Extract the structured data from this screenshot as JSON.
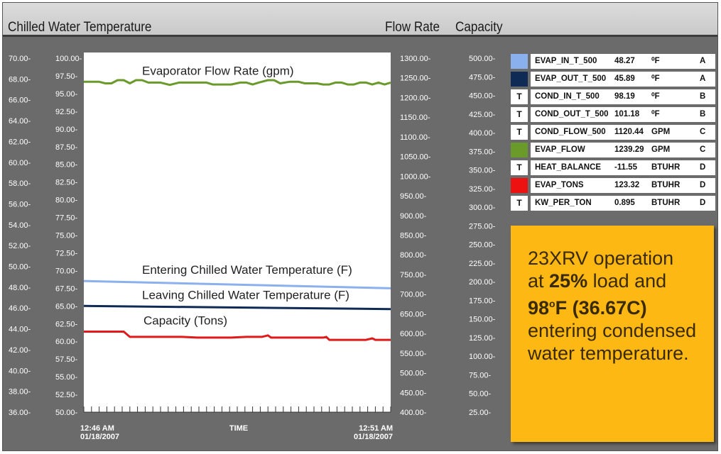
{
  "header": {
    "title_left": "Chilled Water Temperature",
    "title_flow": "Flow Rate",
    "title_capacity": "Capacity"
  },
  "chart_data": {
    "type": "line",
    "title": "",
    "xlabel": "TIME",
    "x_start_label": [
      "12:46 AM",
      "01/18/2007"
    ],
    "x_end_label": [
      "12:51 AM",
      "01/18/2007"
    ],
    "x_range_minutes": [
      0,
      5
    ],
    "axes": [
      {
        "id": "chilled_temp",
        "title": "Chilled Water Temperature",
        "range": [
          36,
          70
        ],
        "ticks": [
          "70.00-",
          "68.00-",
          "66.00-",
          "64.00-",
          "62.00-",
          "60.00-",
          "58.00-",
          "56.00-",
          "54.00-",
          "52.00-",
          "50.00-",
          "48.00-",
          "46.00-",
          "44.00-",
          "42.00-",
          "40.00-",
          "38.00-",
          "36.00-"
        ]
      },
      {
        "id": "cond_temp",
        "title": "",
        "range": [
          50,
          100
        ],
        "ticks": [
          "100.00-",
          "97.50-",
          "95.00-",
          "92.50-",
          "90.00-",
          "87.50-",
          "85.00-",
          "82.50-",
          "80.00-",
          "77.50-",
          "75.00-",
          "72.50-",
          "70.00-",
          "67.50-",
          "65.00-",
          "62.50-",
          "60.00-",
          "57.50-",
          "55.00-",
          "52.50-",
          "50.00-"
        ]
      },
      {
        "id": "flow_rate",
        "title": "Flow Rate",
        "range": [
          400,
          1300
        ],
        "ticks": [
          "1300.00-",
          "1250.00-",
          "1200.00-",
          "1150.00-",
          "1100.00-",
          "1050.00-",
          "1000.00-",
          "950.00-",
          "900.00-",
          "850.00-",
          "800.00-",
          "750.00-",
          "700.00-",
          "650.00-",
          "600.00-",
          "550.00-",
          "500.00-",
          "450.00-",
          "400.00-"
        ]
      },
      {
        "id": "capacity",
        "title": "Capacity",
        "range": [
          25,
          500
        ],
        "ticks": [
          "500.00-",
          "475.00-",
          "450.00-",
          "425.00-",
          "400.00-",
          "375.00-",
          "350.00-",
          "325.00-",
          "300.00-",
          "275.00-",
          "250.00-",
          "225.00-",
          "200.00-",
          "175.00-",
          "150.00-",
          "125.00-",
          "100.00-",
          "75.00-",
          "50.00-",
          "25.00-"
        ]
      }
    ],
    "series": [
      {
        "name": "Evaporator Flow Rate (gpm)",
        "axis": "flow_rate",
        "color": "#6a9a2a",
        "x": [
          0,
          0.25,
          0.35,
          0.45,
          0.55,
          0.65,
          0.75,
          0.85,
          0.95,
          1.05,
          1.15,
          1.25,
          1.4,
          1.55,
          1.7,
          1.85,
          2.0,
          2.1,
          2.25,
          2.4,
          2.55,
          2.65,
          2.75,
          2.85,
          3.0,
          3.1,
          3.2,
          3.35,
          3.5,
          3.6,
          3.7,
          3.8,
          3.9,
          4.0,
          4.1,
          4.2,
          4.3,
          4.4,
          4.5,
          4.6,
          4.7,
          4.8,
          4.9,
          5.0
        ],
        "y": [
          1240,
          1240,
          1236,
          1236,
          1244,
          1244,
          1236,
          1244,
          1244,
          1238,
          1238,
          1238,
          1232,
          1238,
          1238,
          1238,
          1238,
          1233,
          1233,
          1233,
          1238,
          1238,
          1233,
          1238,
          1244,
          1244,
          1236,
          1240,
          1240,
          1236,
          1236,
          1236,
          1233,
          1233,
          1238,
          1238,
          1233,
          1233,
          1238,
          1238,
          1233,
          1238,
          1233,
          1238
        ]
      },
      {
        "name": "Entering Chilled Water Temperature (F)",
        "axis": "chilled_temp",
        "color": "#8ab0ee",
        "x": [
          0,
          5
        ],
        "y": [
          48.6,
          47.9
        ]
      },
      {
        "name": "Leaving Chilled Water Temperature (F)",
        "axis": "chilled_temp",
        "color": "#0e2a55",
        "x": [
          0,
          5
        ],
        "y": [
          46.2,
          45.9
        ]
      },
      {
        "name": "Capacity (Tons)",
        "axis": "capacity",
        "color": "#e01a1a",
        "x": [
          0,
          0.65,
          0.75,
          1.6,
          1.85,
          2.4,
          2.65,
          2.9,
          3.0,
          3.05,
          3.1,
          3.4,
          3.6,
          3.8,
          3.9,
          3.95,
          4.0,
          4.6,
          4.7,
          4.75,
          4.85,
          5.0
        ],
        "y": [
          133,
          133,
          126,
          126,
          125,
          125,
          126,
          126,
          128,
          125,
          125,
          125,
          125,
          125,
          125,
          126,
          122,
          122,
          124,
          122,
          122,
          122
        ]
      }
    ],
    "annotations": [
      {
        "text": "Evaporator Flow Rate (gpm)"
      },
      {
        "text": "Entering Chilled Water Temperature (F)"
      },
      {
        "text": "Leaving Chilled Water Temperature (F)"
      },
      {
        "text": "Capacity (Tons)"
      }
    ],
    "grid": false
  },
  "legend": [
    {
      "swatch": "",
      "color": "#8ab0ee",
      "name": "EVAP_IN_T_500",
      "value": "48.27",
      "unit": "⁰F",
      "axis": "A"
    },
    {
      "swatch": "",
      "color": "#0e2a55",
      "name": "EVAP_OUT_T_500",
      "value": "45.89",
      "unit": "⁰F",
      "axis": "A"
    },
    {
      "swatch": "T",
      "color": "#ffffff",
      "name": "COND_IN_T_500",
      "value": "98.19",
      "unit": "⁰F",
      "axis": "B"
    },
    {
      "swatch": "T",
      "color": "#ffffff",
      "name": "COND_OUT_T_500",
      "value": "101.18",
      "unit": "⁰F",
      "axis": "B"
    },
    {
      "swatch": "T",
      "color": "#ffffff",
      "name": "COND_FLOW_500",
      "value": "1120.44",
      "unit": "GPM",
      "axis": "C"
    },
    {
      "swatch": "",
      "color": "#6a9a2a",
      "name": "EVAP_FLOW",
      "value": "1239.29",
      "unit": "GPM",
      "axis": "C"
    },
    {
      "swatch": "T",
      "color": "#ffffff",
      "name": "HEAT_BALANCE",
      "value": "-11.55",
      "unit": "BTUHR",
      "axis": "D"
    },
    {
      "swatch": "",
      "color": "#ee1111",
      "name": "EVAP_TONS",
      "value": "123.32",
      "unit": "BTUHR",
      "axis": "D"
    },
    {
      "swatch": "T",
      "color": "#ffffff",
      "name": "KW_PER_TON",
      "value": "0.895",
      "unit": "BTUHR",
      "axis": "D"
    }
  ],
  "note": {
    "line1": "23XRV operation",
    "line2a": "at ",
    "line2b": "25%",
    "line2c": " load and",
    "line3a": "98",
    "line3deg": "o",
    "line3b": "F (36.67C)",
    "line4": "entering condensed",
    "line5": "water temperature."
  }
}
